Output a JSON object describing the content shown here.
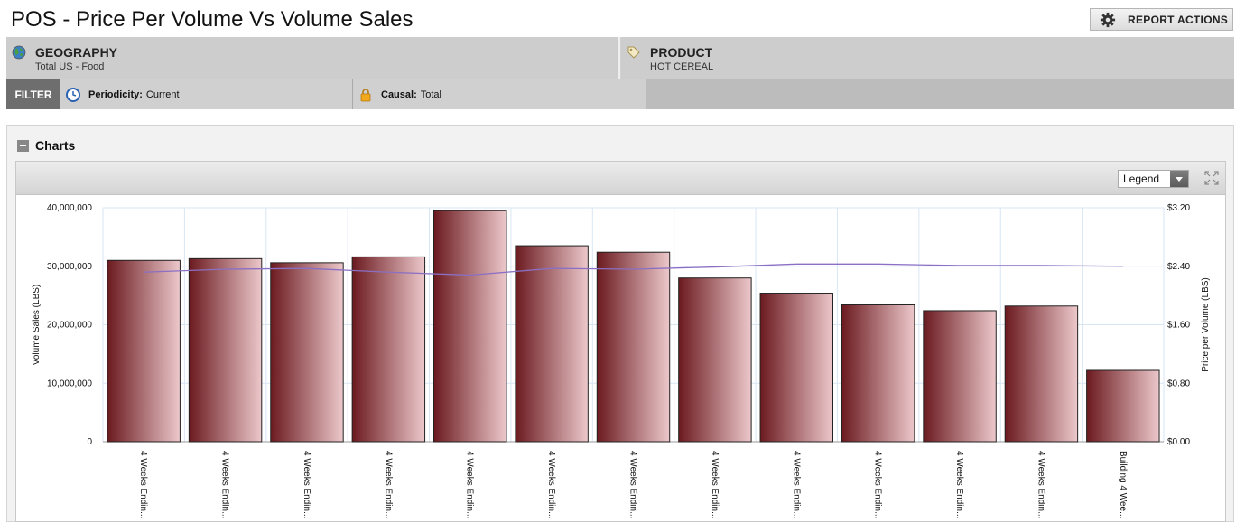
{
  "page": {
    "title": "POS - Price Per Volume Vs Volume Sales",
    "report_actions_label": "REPORT ACTIONS"
  },
  "context_bar": {
    "geography": {
      "heading": "GEOGRAPHY",
      "value": "Total US - Food",
      "icon": "globe-icon"
    },
    "product": {
      "heading": "PRODUCT",
      "value": "HOT CEREAL",
      "icon": "tag-icon"
    }
  },
  "filter_bar": {
    "label": "FILTER",
    "periodicity": {
      "label": "Periodicity:",
      "value": "Current",
      "icon": "clock-icon"
    },
    "causal": {
      "label": "Causal:",
      "value": "Total",
      "icon": "lock-icon"
    }
  },
  "charts_section": {
    "title": "Charts",
    "legend_select": "Legend"
  },
  "colors": {
    "bar_dark": "#6b1a1f",
    "bar_light": "#ecc8cb",
    "line": "#8a6fc4",
    "grid": "#d8e6f3"
  },
  "chart_data": {
    "type": "bar",
    "categories": [
      "4 Weeks Endin...",
      "4 Weeks Endin...",
      "4 Weeks Endin...",
      "4 Weeks Endin...",
      "4 Weeks Endin...",
      "4 Weeks Endin...",
      "4 Weeks Endin...",
      "4 Weeks Endin...",
      "4 Weeks Endin...",
      "4 Weeks Endin...",
      "4 Weeks Endin...",
      "4 Weeks Endin...",
      "Building 4 Wee..."
    ],
    "series": [
      {
        "values": [
          31000000,
          31300000,
          30600000,
          31600000,
          39500000,
          33500000,
          32400000,
          28000000,
          25400000,
          23400000,
          22400000,
          23200000,
          12200000
        ]
      },
      {
        "type": "line",
        "axis": "right",
        "values": [
          2.32,
          2.36,
          2.37,
          2.32,
          2.28,
          2.37,
          2.36,
          2.39,
          2.43,
          2.43,
          2.41,
          2.41,
          2.4
        ]
      }
    ],
    "ylabel": "Volume Sales (LBS)",
    "y2label": "Price per Volume (LBS)",
    "ylim": [
      0,
      40000000
    ],
    "y2lim": [
      0,
      3.2
    ],
    "yticks": [
      "0",
      "10,000,000",
      "20,000,000",
      "30,000,000",
      "40,000,000"
    ],
    "y2ticks": [
      "$0.00",
      "$0.80",
      "$1.60",
      "$2.40",
      "$3.20"
    ],
    "grid": true
  }
}
